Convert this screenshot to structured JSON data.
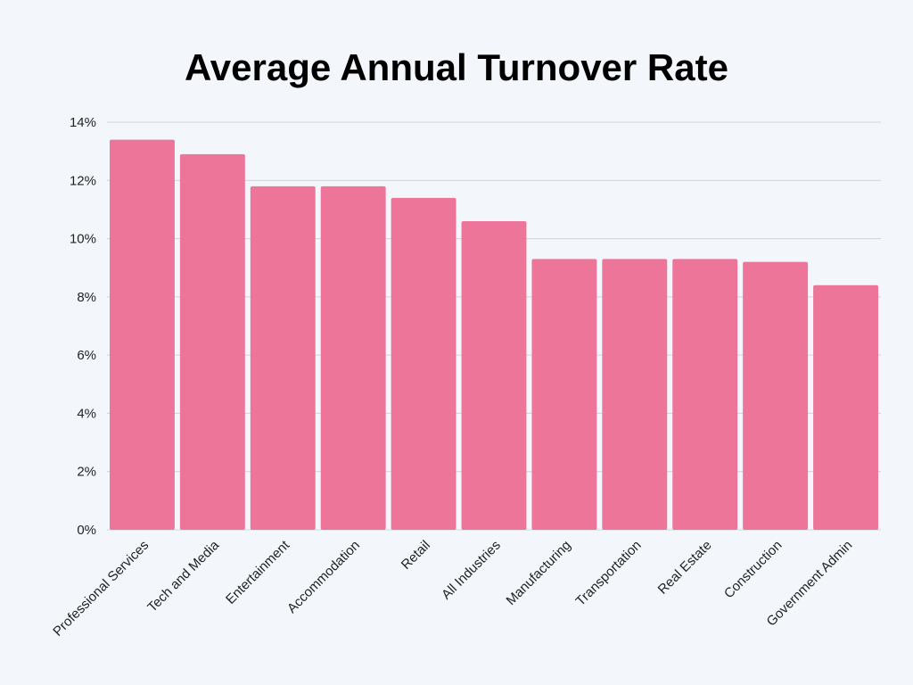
{
  "chart_data": {
    "type": "bar",
    "title": "Average Annual Turnover Rate",
    "categories": [
      "Professional Services",
      "Tech and Media",
      "Entertainment",
      "Accommodation",
      "Retail",
      "All Industries",
      "Manufacturing",
      "Transportation",
      "Real Estate",
      "Construction",
      "Government Admin"
    ],
    "values": [
      13.4,
      12.9,
      11.8,
      11.8,
      11.4,
      10.6,
      9.3,
      9.3,
      9.3,
      9.2,
      8.4
    ],
    "color": "#ec7599",
    "ylim": [
      0,
      14
    ],
    "yticks": [
      {
        "value": 0,
        "label": "0%"
      },
      {
        "value": 2,
        "label": "2%"
      },
      {
        "value": 4,
        "label": "4%"
      },
      {
        "value": 6,
        "label": "6%"
      },
      {
        "value": 8,
        "label": "8%"
      },
      {
        "value": 10,
        "label": "10%"
      },
      {
        "value": 12,
        "label": "12%"
      },
      {
        "value": 14,
        "label": "14%"
      }
    ],
    "grid": true
  }
}
